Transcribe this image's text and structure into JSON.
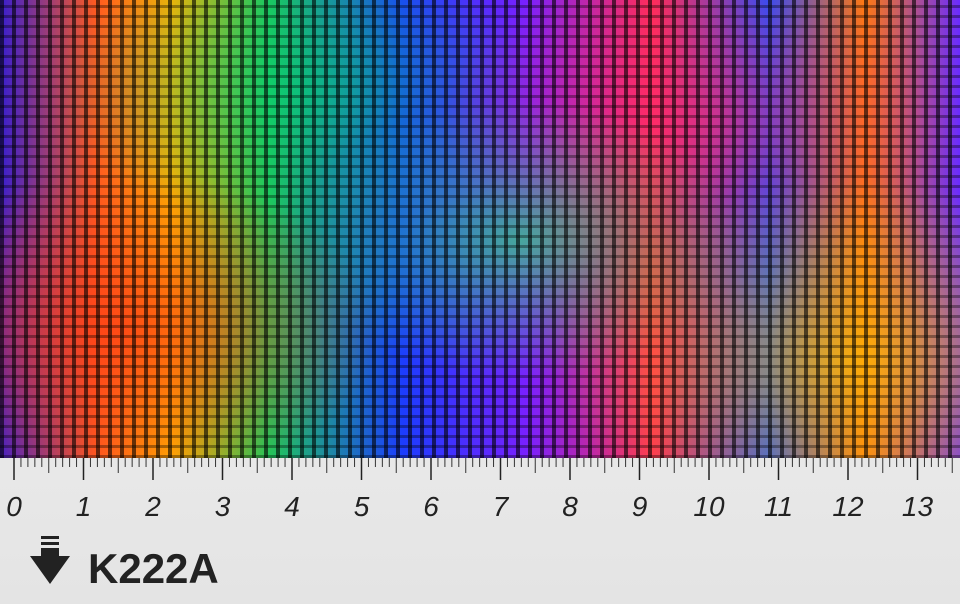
{
  "ruler": {
    "labels": [
      0,
      1,
      2,
      3,
      4,
      5,
      6,
      7,
      8,
      9,
      10,
      11,
      12,
      13
    ]
  },
  "product": {
    "code": "K222A"
  }
}
